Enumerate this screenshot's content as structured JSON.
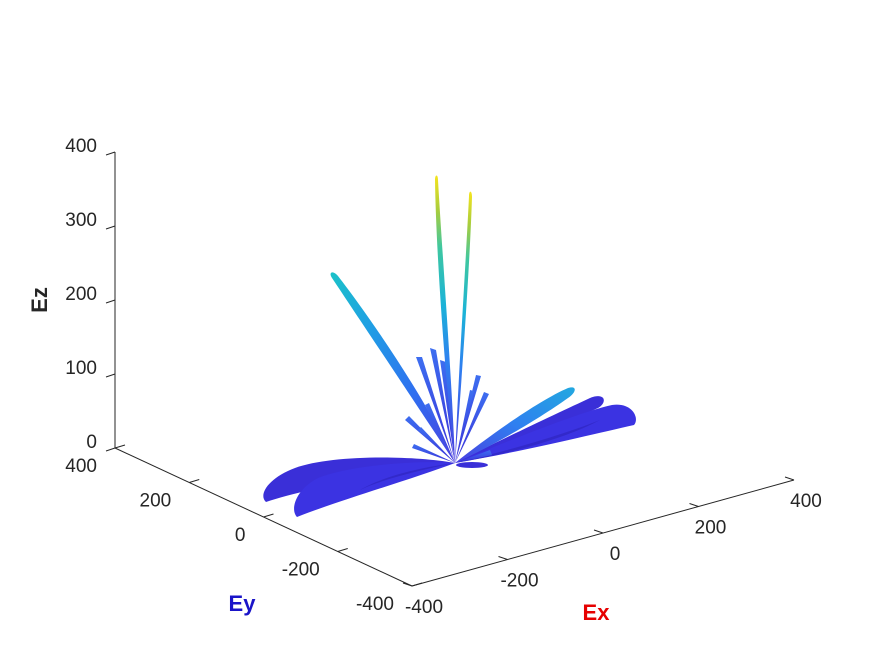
{
  "chart_data": {
    "type": "3d-radiation-pattern",
    "title": "",
    "xlabel": "Ex",
    "ylabel": "Ey",
    "zlabel": "Ez",
    "xlim": [
      -400,
      400
    ],
    "ylim": [
      -400,
      400
    ],
    "zlim": [
      0,
      400
    ],
    "xticks": [
      -400,
      -200,
      0,
      200,
      400
    ],
    "yticks": [
      -400,
      -200,
      0,
      200,
      400
    ],
    "zticks": [
      0,
      100,
      200,
      300,
      400
    ],
    "xlabel_color": "#e60000",
    "ylabel_color": "#1a14c8",
    "zlabel_color": "#262626",
    "grid": false,
    "colormap": "parula",
    "colormap_stops": [
      "#3e26a8",
      "#4a3fe0",
      "#2f7ff0",
      "#1bb3d8",
      "#3fc7a0",
      "#a9cd3c",
      "#f5e41d"
    ],
    "lobes": [
      {
        "name": "left-horizontal-lobe",
        "x": -200,
        "y": 350,
        "z": 0,
        "magnitude": 400,
        "width": 70
      },
      {
        "name": "left-horizontal-lobe-2",
        "x": -120,
        "y": 380,
        "z": 0,
        "magnitude": 400,
        "width": 60
      },
      {
        "name": "right-horizontal-lobe",
        "x": 100,
        "y": -380,
        "z": 0,
        "magnitude": 390,
        "width": 60
      },
      {
        "name": "right-horizontal-lobe-2",
        "x": 160,
        "y": -340,
        "z": 0,
        "magnitude": 380,
        "width": 60
      },
      {
        "name": "tilted-lobe-left",
        "x": -170,
        "y": 90,
        "z": 240,
        "magnitude": 300,
        "width": 22
      },
      {
        "name": "tilted-lobe-right",
        "x": 20,
        "y": -180,
        "z": 100,
        "magnitude": 210,
        "width": 20
      },
      {
        "name": "vertical-main-lobe-1",
        "x": -6,
        "y": 12,
        "z": 365,
        "magnitude": 365,
        "width": 8
      },
      {
        "name": "vertical-main-lobe-2",
        "x": 12,
        "y": -14,
        "z": 350,
        "magnitude": 350,
        "width": 8
      }
    ]
  }
}
